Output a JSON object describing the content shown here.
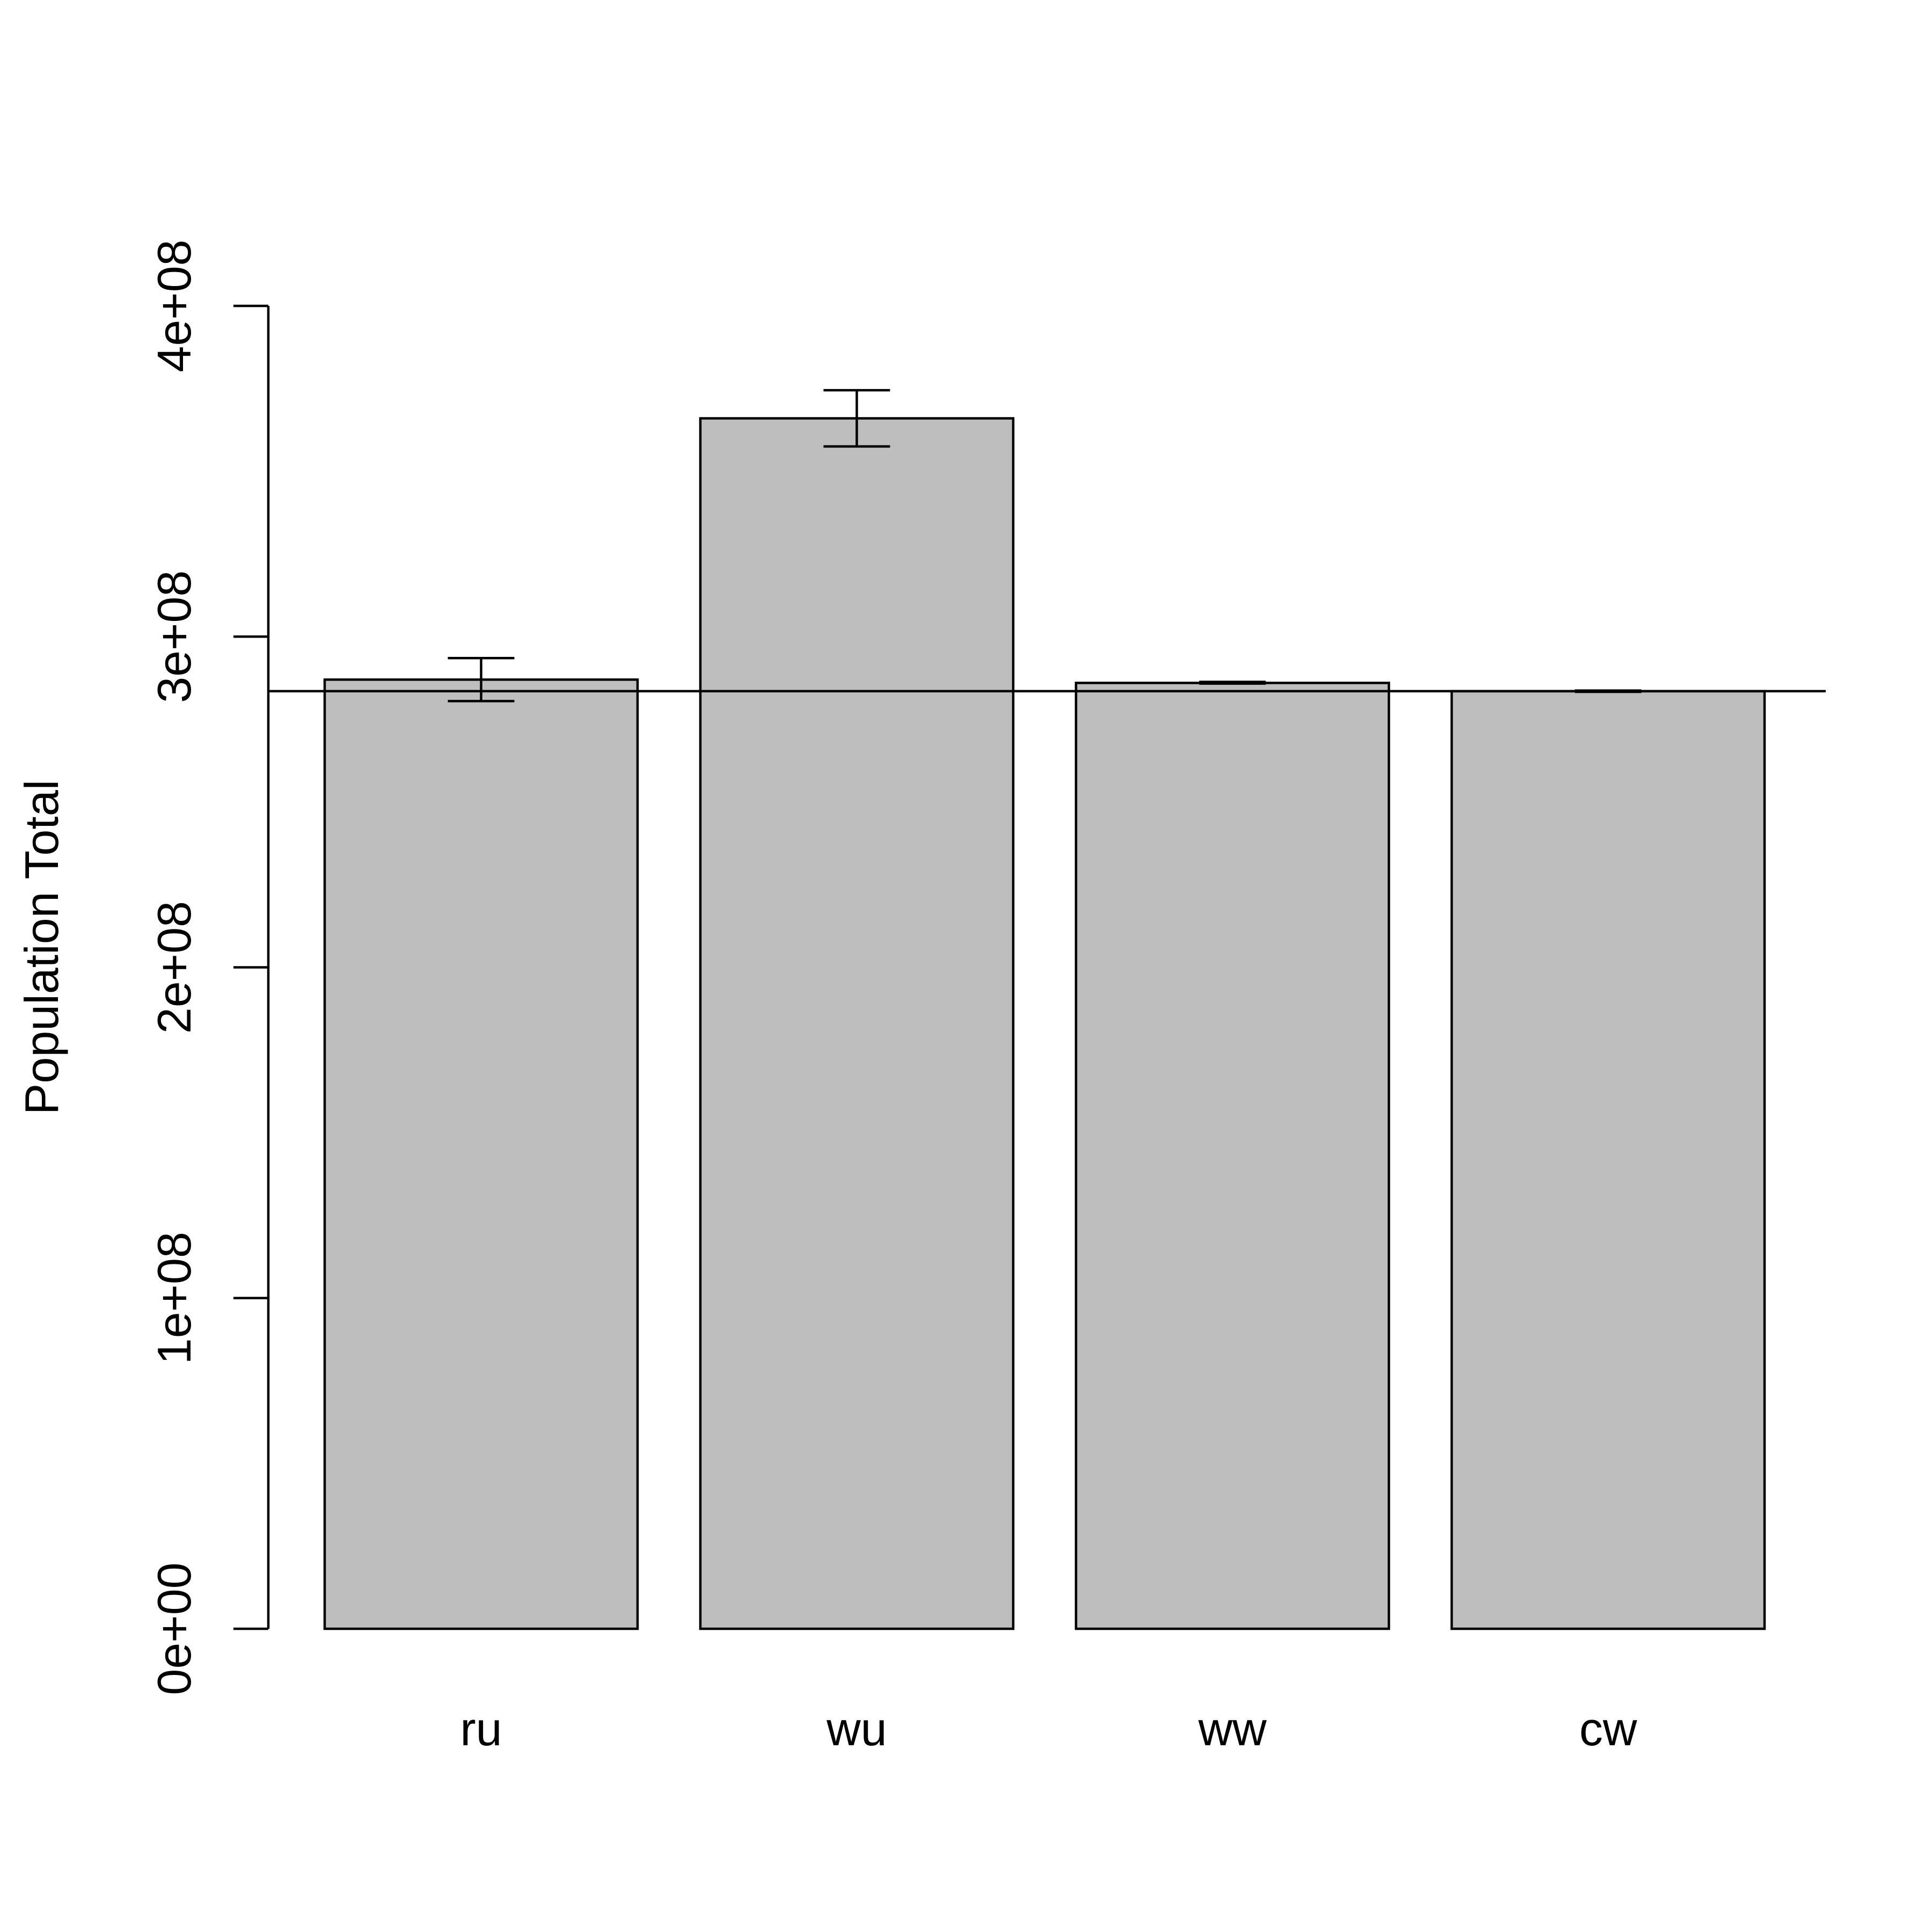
{
  "chart_data": {
    "type": "bar",
    "title": "",
    "xlabel": "",
    "ylabel": "Population Total",
    "categories": [
      "ru",
      "wu",
      "ww",
      "cw"
    ],
    "values": [
      287000000,
      366000000,
      286000000,
      283500000
    ],
    "error_bars": [
      {
        "low": 280500000,
        "high": 293500000
      },
      {
        "low": 357500000,
        "high": 374500000
      },
      {
        "low": 285800000,
        "high": 286300000
      },
      {
        "low": 283300000,
        "high": 283700000
      }
    ],
    "reference_line": 283500000,
    "ylim": [
      0,
      400000000
    ],
    "y_ticks": [
      0,
      100000000,
      200000000,
      300000000,
      400000000
    ],
    "y_tick_labels": [
      "0e+00",
      "1e+08",
      "2e+08",
      "3e+08",
      "4e+08"
    ],
    "grid": false,
    "legend": "none",
    "colors": {
      "bar_fill": "#bebebe",
      "bar_stroke": "#000000",
      "line": "#000000",
      "background": "#ffffff"
    }
  }
}
